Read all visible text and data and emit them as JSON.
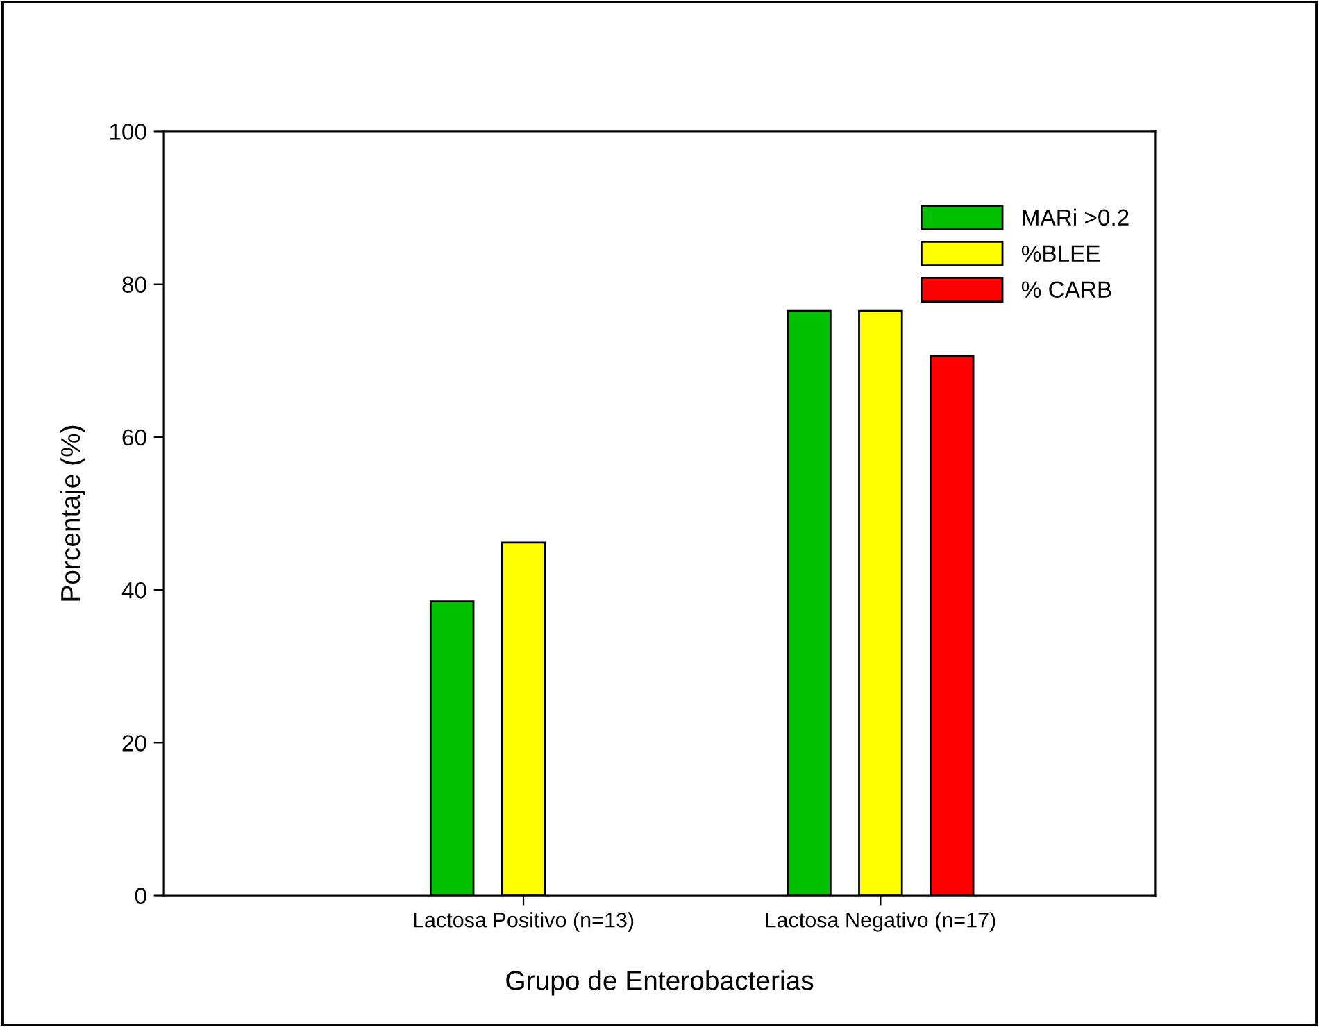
{
  "chart_data": {
    "type": "bar",
    "xlabel": "Grupo de Enterobacterias",
    "ylabel": "Porcentaje (%)",
    "categories": [
      "Lactosa Positivo (n=13)",
      "Lactosa Negativo (n=17)"
    ],
    "series": [
      {
        "name": "MARi >0.2",
        "color": "#00c000",
        "values": [
          38.5,
          76.5
        ]
      },
      {
        "name": "%BLEE",
        "color": "#ffff00",
        "values": [
          46.2,
          76.5
        ]
      },
      {
        "name": "% CARB",
        "color": "#ff0000",
        "values": [
          null,
          70.6
        ]
      }
    ],
    "ylim": [
      0,
      100
    ],
    "yticks": [
      0,
      20,
      40,
      60,
      80,
      100
    ],
    "grid": false,
    "legend": "top right"
  }
}
